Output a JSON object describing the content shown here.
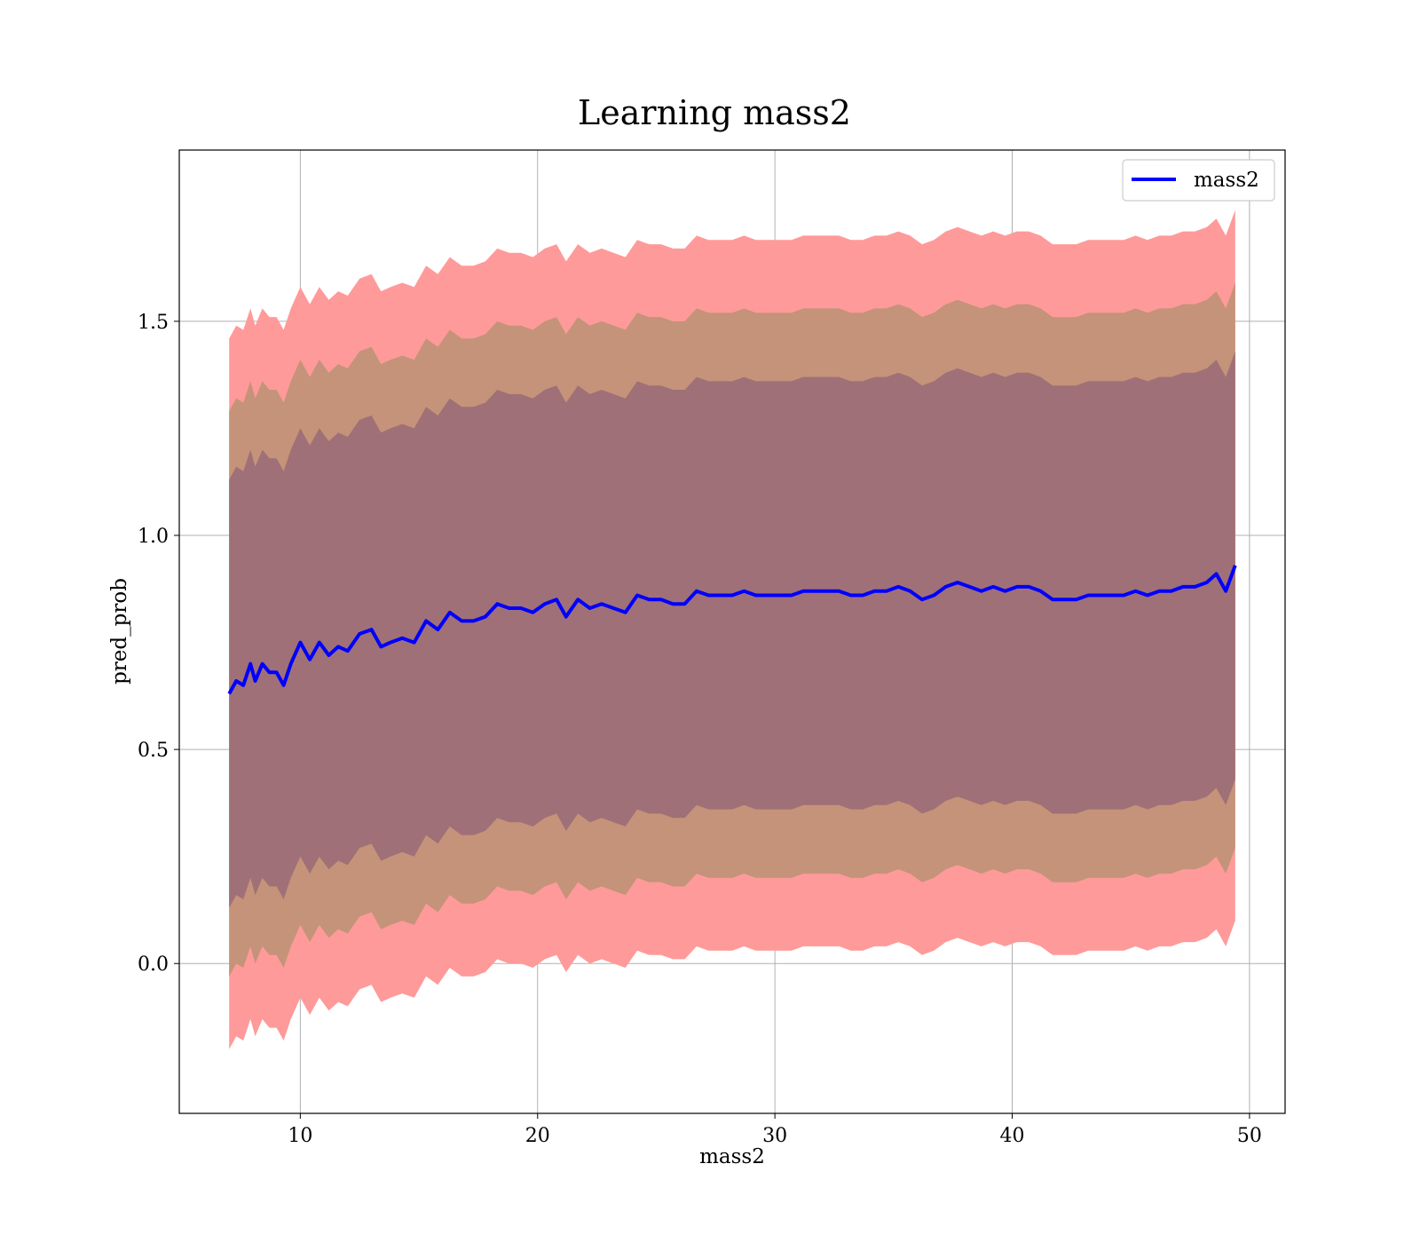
{
  "chart_data": {
    "type": "line",
    "title": "Learning mass2",
    "xlabel": "mass2",
    "ylabel": "pred_prob",
    "xlim": [
      4.9,
      51.5
    ],
    "ylim": [
      -0.35,
      1.9
    ],
    "xticks": [
      10,
      20,
      30,
      40,
      50
    ],
    "yticks": [
      0.0,
      0.5,
      1.0,
      1.5
    ],
    "xtick_labels": [
      "10",
      "20",
      "30",
      "40",
      "50"
    ],
    "ytick_labels": [
      "0.0",
      "0.5",
      "1.0",
      "1.5"
    ],
    "grid": true,
    "legend": {
      "position": "top-right",
      "entries": [
        "mass2"
      ]
    },
    "colors": {
      "line": "#0000ff",
      "band_outer": "#ff9a9a",
      "band_middle": "#c49379",
      "band_inner": "#a07078",
      "grid": "#b0b0b0"
    },
    "series": [
      {
        "name": "mass2",
        "x": [
          7.0,
          7.3,
          7.6,
          7.9,
          8.1,
          8.4,
          8.7,
          9.0,
          9.3,
          9.6,
          10.0,
          10.4,
          10.8,
          11.2,
          11.6,
          12.0,
          12.5,
          13.0,
          13.4,
          13.8,
          14.3,
          14.8,
          15.3,
          15.8,
          16.3,
          16.8,
          17.3,
          17.8,
          18.3,
          18.8,
          19.3,
          19.8,
          20.3,
          20.8,
          21.2,
          21.7,
          22.2,
          22.7,
          23.2,
          23.7,
          24.2,
          24.7,
          25.2,
          25.7,
          26.2,
          26.7,
          27.2,
          27.7,
          28.2,
          28.7,
          29.2,
          29.7,
          30.2,
          30.7,
          31.2,
          31.7,
          32.2,
          32.7,
          33.2,
          33.7,
          34.2,
          34.7,
          35.2,
          35.7,
          36.2,
          36.7,
          37.2,
          37.7,
          38.2,
          38.7,
          39.2,
          39.7,
          40.2,
          40.7,
          41.2,
          41.7,
          42.2,
          42.7,
          43.2,
          43.7,
          44.2,
          44.7,
          45.2,
          45.7,
          46.2,
          46.7,
          47.2,
          47.7,
          48.2,
          48.6,
          49.0,
          49.4
        ],
        "y": [
          0.63,
          0.66,
          0.65,
          0.7,
          0.66,
          0.7,
          0.68,
          0.68,
          0.65,
          0.7,
          0.75,
          0.71,
          0.75,
          0.72,
          0.74,
          0.73,
          0.77,
          0.78,
          0.74,
          0.75,
          0.76,
          0.75,
          0.8,
          0.78,
          0.82,
          0.8,
          0.8,
          0.81,
          0.84,
          0.83,
          0.83,
          0.82,
          0.84,
          0.85,
          0.81,
          0.85,
          0.83,
          0.84,
          0.83,
          0.82,
          0.86,
          0.85,
          0.85,
          0.84,
          0.84,
          0.87,
          0.86,
          0.86,
          0.86,
          0.87,
          0.86,
          0.86,
          0.86,
          0.86,
          0.87,
          0.87,
          0.87,
          0.87,
          0.86,
          0.86,
          0.87,
          0.87,
          0.88,
          0.87,
          0.85,
          0.86,
          0.88,
          0.89,
          0.88,
          0.87,
          0.88,
          0.87,
          0.88,
          0.88,
          0.87,
          0.85,
          0.85,
          0.85,
          0.86,
          0.86,
          0.86,
          0.86,
          0.87,
          0.86,
          0.87,
          0.87,
          0.88,
          0.88,
          0.89,
          0.91,
          0.87,
          0.93
        ],
        "bands_sigma": [
          0.5,
          0.66,
          0.83
        ]
      }
    ]
  }
}
